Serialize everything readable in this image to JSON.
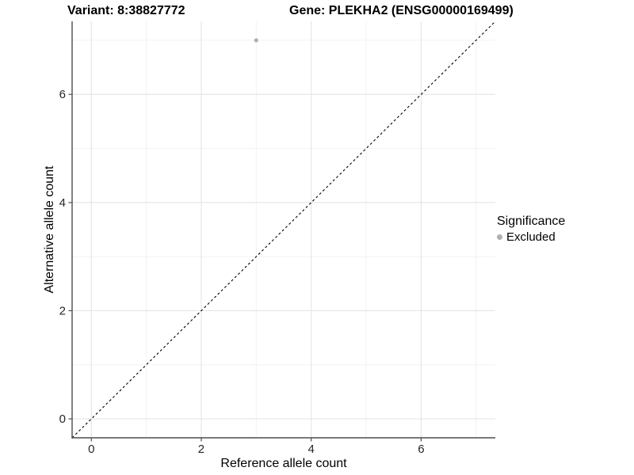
{
  "header": {
    "variant_title": "Variant: 8:38827772",
    "gene_title": "Gene: PLEKHA2 (ENSG00000169499)"
  },
  "chart_data": {
    "type": "scatter",
    "xlabel": "Reference allele count",
    "ylabel": "Alternative allele count",
    "xlim": [
      -0.35,
      7.35
    ],
    "ylim": [
      -0.35,
      7.35
    ],
    "x_major_ticks": [
      0,
      2,
      4,
      6
    ],
    "y_major_ticks": [
      0,
      2,
      4,
      6
    ],
    "x_minor_gridlines": [
      1,
      3,
      5,
      7
    ],
    "y_minor_gridlines": [
      1,
      3,
      5,
      7
    ],
    "grid": "major+minor",
    "points": [
      {
        "x": 3,
        "y": 7,
        "series": "Excluded"
      }
    ],
    "series": [
      {
        "name": "Excluded",
        "color": "#b0b0b0"
      }
    ],
    "reference_line": {
      "type": "identity",
      "slope": 1,
      "intercept": 0,
      "style": "dashed"
    }
  },
  "legend": {
    "title": "Significance",
    "position": "right",
    "items": [
      {
        "label": "Excluded",
        "color": "#b0b0b0"
      }
    ]
  },
  "colors": {
    "background": "#ffffff",
    "grid_major": "#e4e4e4",
    "grid_minor": "#f1f1f1",
    "axis_line": "#4d4d4d",
    "tick_mark": "#4d4d4d",
    "tick_label": "#262626",
    "identity_line": "#000000",
    "point": "#b0b0b0"
  }
}
